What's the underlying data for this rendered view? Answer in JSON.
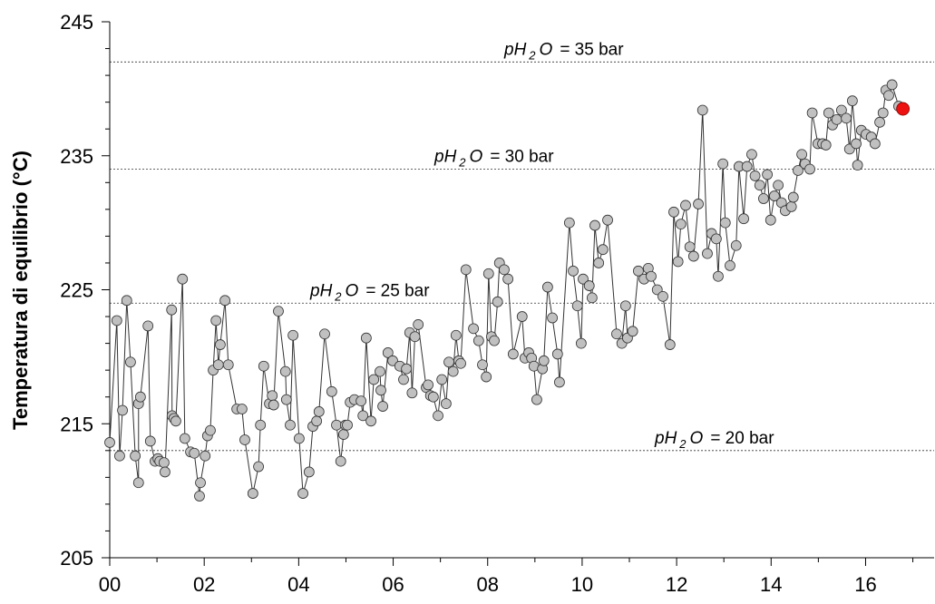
{
  "chart_data": {
    "type": "line",
    "y_label": "Temperatura di equilibrio (°C)",
    "xlim": [
      0,
      17.45
    ],
    "ylim": [
      205,
      245
    ],
    "xticks": [
      {
        "value": 0,
        "label": "00"
      },
      {
        "value": 2,
        "label": "02"
      },
      {
        "value": 4,
        "label": "04"
      },
      {
        "value": 6,
        "label": "06"
      },
      {
        "value": 8,
        "label": "08"
      },
      {
        "value": 10,
        "label": "10"
      },
      {
        "value": 12,
        "label": "12"
      },
      {
        "value": 14,
        "label": "14"
      },
      {
        "value": 16,
        "label": "16"
      }
    ],
    "xminorticks": [
      1,
      3,
      5,
      7,
      9,
      11,
      13,
      15,
      17
    ],
    "yticks": [
      205,
      215,
      225,
      235,
      245
    ],
    "yminorticks": [
      207,
      209,
      211,
      213,
      217,
      219,
      221,
      223,
      227,
      229,
      231,
      233,
      237,
      239,
      241,
      243
    ],
    "annotation_symbol": {
      "base": "pH",
      "sub": "2",
      "tail": "O"
    },
    "annotations": [
      {
        "y": 242,
        "label": "= 35 bar"
      },
      {
        "y": 234,
        "label": "= 30 bar"
      },
      {
        "y": 224,
        "label": "= 25 bar"
      },
      {
        "y": 213,
        "label": "= 20 bar"
      }
    ],
    "color": "#c0c0c0",
    "line_color": "#333333",
    "highlight_color": "#ee1111",
    "x": [
      0,
      0.15,
      0.21,
      0.27,
      0.36,
      0.44,
      0.54,
      0.61,
      0.61,
      0.65,
      0.81,
      0.86,
      0.96,
      1.02,
      1.06,
      1.15,
      1.17,
      1.31,
      1.32,
      1.36,
      1.4,
      1.54,
      1.59,
      1.71,
      1.79,
      1.9,
      1.92,
      2.02,
      2.07,
      2.13,
      2.19,
      2.25,
      2.3,
      2.34,
      2.44,
      2.51,
      2.69,
      2.8,
      2.86,
      3.03,
      3.15,
      3.19,
      3.26,
      3.38,
      3.44,
      3.47,
      3.57,
      3.72,
      3.74,
      3.82,
      3.88,
      4.01,
      4.09,
      4.22,
      4.3,
      4.38,
      4.43,
      4.55,
      4.7,
      4.8,
      4.89,
      4.95,
      4.99,
      5.03,
      5.09,
      5.18,
      5.32,
      5.36,
      5.43,
      5.53,
      5.59,
      5.72,
      5.74,
      5.78,
      5.89,
      5.99,
      6.14,
      6.22,
      6.28,
      6.35,
      6.4,
      6.46,
      6.53,
      6.7,
      6.74,
      6.79,
      6.85,
      6.95,
      7.03,
      7.12,
      7.18,
      7.27,
      7.33,
      7.39,
      7.43,
      7.54,
      7.7,
      7.81,
      7.89,
      7.97,
      8.02,
      8.08,
      8.14,
      8.21,
      8.25,
      8.35,
      8.43,
      8.54,
      8.73,
      8.79,
      8.87,
      8.93,
      8.98,
      9.04,
      9.16,
      9.19,
      9.27,
      9.37,
      9.48,
      9.52,
      9.73,
      9.81,
      9.9,
      9.98,
      10.02,
      10.15,
      10.21,
      10.27,
      10.35,
      10.44,
      10.54,
      10.73,
      10.84,
      10.92,
      10.96,
      11.07,
      11.19,
      11.31,
      11.4,
      11.46,
      11.59,
      11.71,
      11.86,
      11.94,
      12.03,
      12.09,
      12.19,
      12.28,
      12.36,
      12.46,
      12.55,
      12.65,
      12.74,
      12.84,
      12.88,
      12.98,
      13.03,
      13.13,
      13.26,
      13.32,
      13.42,
      13.49,
      13.59,
      13.66,
      13.76,
      13.84,
      13.92,
      13.99,
      14.07,
      14.15,
      14.22,
      14.3,
      14.43,
      14.47,
      14.57,
      14.65,
      14.72,
      14.82,
      14.87,
      14.99,
      15.09,
      15.16,
      15.22,
      15.3,
      15.39,
      15.49,
      15.59,
      15.66,
      15.72,
      15.8,
      15.83,
      15.91,
      16.01,
      16.12,
      16.2,
      16.3,
      16.37,
      16.43,
      16.49,
      16.56,
      16.7,
      16.79
    ],
    "values": [
      213.6,
      222.7,
      212.6,
      216,
      224.2,
      219.6,
      212.6,
      210.6,
      216.5,
      217,
      222.3,
      213.7,
      212.2,
      212.4,
      212.2,
      212.1,
      211.4,
      223.5,
      215.6,
      215.4,
      215.2,
      225.8,
      213.9,
      212.9,
      212.8,
      209.6,
      210.6,
      212.6,
      214.1,
      214.5,
      219,
      222.7,
      219.4,
      220.9,
      224.2,
      219.4,
      216.1,
      216.1,
      213.8,
      209.8,
      211.8,
      214.9,
      219.3,
      216.5,
      217.1,
      216.4,
      223.4,
      218.9,
      216.8,
      214.9,
      221.6,
      213.9,
      209.8,
      211.4,
      214.8,
      215.2,
      215.9,
      221.7,
      217.4,
      214.9,
      212.2,
      214.2,
      214.9,
      214.9,
      216.6,
      216.8,
      216.7,
      215.6,
      221.4,
      215.2,
      218.3,
      218.9,
      217.5,
      216.3,
      220.3,
      219.7,
      219.3,
      218.3,
      219.1,
      221.8,
      217.3,
      221.5,
      222.4,
      217.7,
      217.9,
      217.1,
      217,
      215.6,
      218.3,
      216.5,
      219.6,
      218.9,
      221.6,
      219.7,
      219.5,
      226.5,
      222.1,
      221.2,
      219.4,
      218.5,
      226.2,
      221.5,
      221.2,
      224.1,
      227,
      226.5,
      225.8,
      220.2,
      223,
      219.9,
      220.3,
      219.9,
      219.3,
      216.8,
      219.1,
      219.7,
      225.2,
      222.9,
      220.2,
      218.1,
      230,
      226.4,
      223.8,
      221,
      225.8,
      225.3,
      224.4,
      229.8,
      227,
      228,
      230.2,
      221.7,
      221,
      223.8,
      221.4,
      221.9,
      226.4,
      225.8,
      226.6,
      226,
      225,
      224.5,
      220.9,
      230.8,
      227.1,
      229.9,
      231.3,
      228.2,
      227.5,
      231.4,
      238.4,
      227.7,
      229.2,
      228.8,
      226,
      234.4,
      230,
      226.8,
      228.3,
      234.2,
      230.3,
      234.2,
      235.1,
      233.5,
      232.8,
      231.8,
      233.6,
      230.2,
      232,
      232.8,
      231.5,
      230.9,
      231.2,
      231.9,
      233.9,
      235.1,
      234.4,
      234,
      238.2,
      235.9,
      235.9,
      235.8,
      238.2,
      237.3,
      237.7,
      238.4,
      237.8,
      235.5,
      239.1,
      235.9,
      234.3,
      236.9,
      236.6,
      236.4,
      235.9,
      237.5,
      238.2,
      239.9,
      239.5,
      240.3,
      238.7,
      238.5
    ]
  }
}
